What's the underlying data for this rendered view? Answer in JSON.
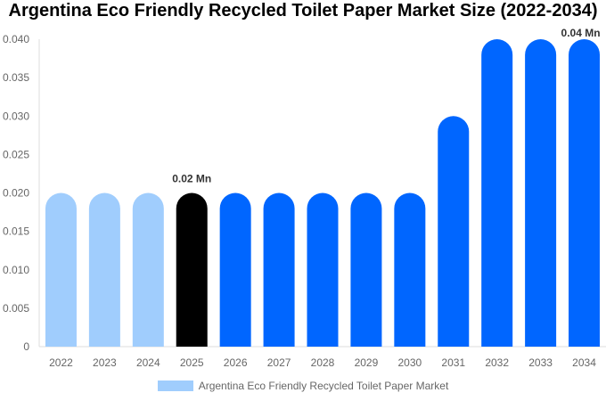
{
  "chart_data": {
    "type": "bar",
    "title": "Argentina Eco Friendly Recycled Toilet Paper Market Size (2022-2034)",
    "categories": [
      "2022",
      "2023",
      "2024",
      "2025",
      "2026",
      "2027",
      "2028",
      "2029",
      "2030",
      "2031",
      "2032",
      "2033",
      "2034"
    ],
    "series": [
      {
        "name": "Argentina Eco Friendly Recycled Toilet Paper Market",
        "values": [
          0.02,
          0.02,
          0.02,
          0.02,
          0.02,
          0.02,
          0.02,
          0.02,
          0.02,
          0.03,
          0.04,
          0.04,
          0.04
        ]
      }
    ],
    "ylim": [
      0,
      0.04
    ],
    "yticks": [
      "0",
      "0.005",
      "0.010",
      "0.015",
      "0.020",
      "0.025",
      "0.030",
      "0.035",
      "0.040"
    ],
    "data_labels": [
      {
        "category": "2025",
        "text": "0.02 Mn"
      },
      {
        "category": "2034",
        "text": "0.04 Mn"
      }
    ],
    "colors": {
      "historical": "#a0cdfd",
      "current": "#000000",
      "forecast": "#0066ff"
    },
    "highlight_category": "2025",
    "legend_position": "bottom",
    "grid": false
  }
}
